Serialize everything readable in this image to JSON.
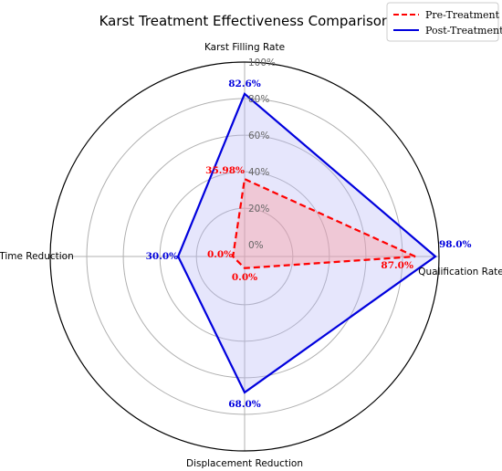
{
  "chart_data": {
    "type": "radar",
    "title": "Karst Treatment Effectiveness Comparison",
    "axes": [
      "Qualification Rate",
      "Karst Filling Rate",
      "Time Reduction",
      "Displacement Reduction"
    ],
    "rlim": [
      0,
      100
    ],
    "rticks": [
      "0%",
      "20%",
      "40%",
      "60%",
      "80%",
      "100%"
    ],
    "rtick_values": [
      0,
      20,
      40,
      60,
      80,
      100
    ],
    "grid": true,
    "legend_position": "top-right",
    "series": [
      {
        "name": "Pre-Treatment",
        "values": [
          87.0,
          35.98,
          0.0,
          0.0
        ],
        "labels": [
          "87.0%",
          "35.98%",
          "0.0%",
          "0.0%"
        ],
        "color": "#ff0000",
        "fill": "#ff9090",
        "linestyle": "dashed"
      },
      {
        "name": "Post-Treatment",
        "values": [
          98.0,
          82.6,
          30.0,
          68.0
        ],
        "labels": [
          "98.0%",
          "82.6%",
          "30.0%",
          "68.0%"
        ],
        "color": "#0000dd",
        "fill": "#b8b8f5",
        "linestyle": "solid"
      }
    ]
  }
}
